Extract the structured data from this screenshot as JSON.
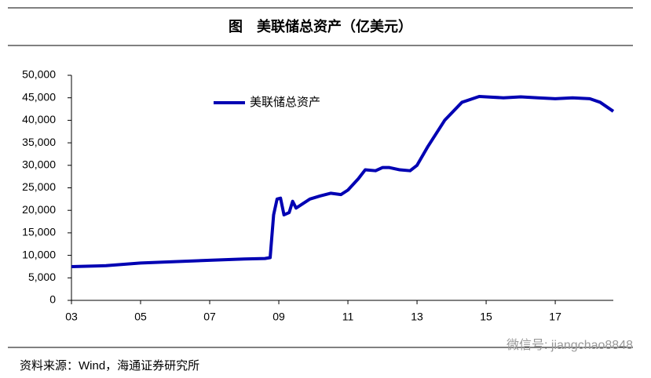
{
  "chart_data": {
    "type": "line",
    "title": "图　美联储总资产（亿美元）",
    "source": "资料来源：Wind，海通证券研究所",
    "watermark": "微信号: jiangchao8848",
    "legend": "upper-left",
    "series": [
      {
        "name": "美联储总资产",
        "color": "#0000b3",
        "x": [
          2003.0,
          2004.0,
          2005.0,
          2006.0,
          2007.0,
          2008.0,
          2008.6,
          2008.75,
          2008.85,
          2008.95,
          2009.05,
          2009.15,
          2009.3,
          2009.4,
          2009.5,
          2009.7,
          2009.9,
          2010.2,
          2010.5,
          2010.8,
          2011.0,
          2011.3,
          2011.5,
          2011.8,
          2012.0,
          2012.2,
          2012.5,
          2012.8,
          2013.0,
          2013.3,
          2013.8,
          2014.3,
          2014.8,
          2015.0,
          2015.5,
          2016.0,
          2016.5,
          2017.0,
          2017.5,
          2018.0,
          2018.3,
          2018.68
        ],
        "values": [
          7500,
          7700,
          8300,
          8600,
          8900,
          9200,
          9300,
          9500,
          19000,
          22500,
          22700,
          19000,
          19500,
          22000,
          20500,
          21500,
          22500,
          23200,
          23800,
          23500,
          24500,
          27000,
          29000,
          28800,
          29500,
          29500,
          29000,
          28800,
          30000,
          34000,
          40000,
          44000,
          45300,
          45200,
          45000,
          45200,
          45000,
          44800,
          45000,
          44800,
          44000,
          42000
        ]
      }
    ],
    "xlim": [
      2003,
      2018.68
    ],
    "xticks": [
      {
        "value": 2003,
        "label": "03"
      },
      {
        "value": 2005,
        "label": "05"
      },
      {
        "value": 2007,
        "label": "07"
      },
      {
        "value": 2009,
        "label": "09"
      },
      {
        "value": 2011,
        "label": "11"
      },
      {
        "value": 2013,
        "label": "13"
      },
      {
        "value": 2015,
        "label": "15"
      },
      {
        "value": 2017,
        "label": "17"
      }
    ],
    "ylim": [
      0,
      50000
    ],
    "yticks": [
      0,
      {
        "value": 5000,
        "label": "5,000"
      },
      {
        "value": 10000,
        "label": "10,000"
      },
      {
        "value": 15000,
        "label": "15,000"
      },
      {
        "value": 20000,
        "label": "20,000"
      },
      {
        "value": 25000,
        "label": "25,000"
      },
      {
        "value": 30000,
        "label": "30,000"
      },
      {
        "value": 35000,
        "label": "35,000"
      },
      {
        "value": 40000,
        "label": "40,000"
      },
      {
        "value": 45000,
        "label": "45,000"
      },
      {
        "value": 50000,
        "label": "50,000"
      }
    ]
  }
}
